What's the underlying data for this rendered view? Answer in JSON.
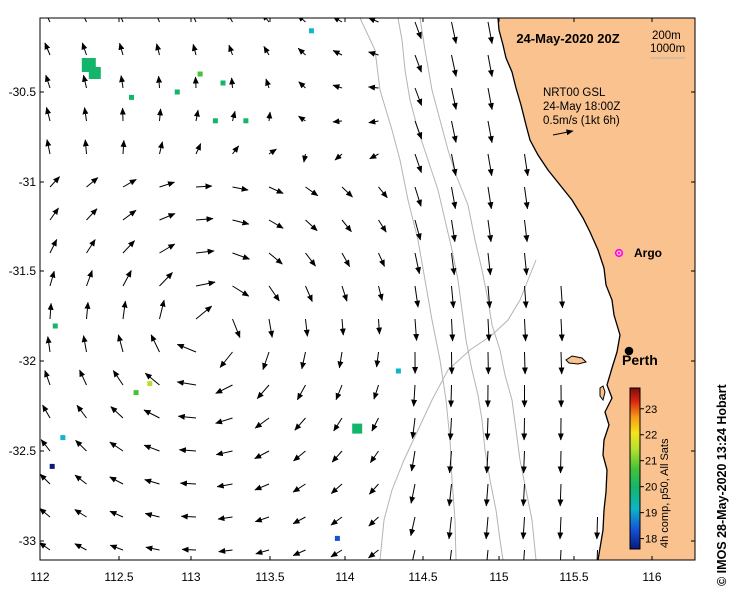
{
  "title": "24-May-2020 20Z",
  "depth_contours": [
    "200m",
    "1000m"
  ],
  "current_info": {
    "line1": "NRT00 GSL",
    "line2": "24-May 18:00Z",
    "line3": "0.5m/s (1kt 6h)"
  },
  "argo_label": "Argo",
  "city_label": "Perth",
  "credit": "© IMOS 28-May-2020 13:24 Hobart",
  "colorbar": {
    "label": "4h comp, p50, All Sats",
    "ticks": [
      "23",
      "22",
      "21",
      "20",
      "19",
      "18"
    ],
    "min": 17.6,
    "max": 23.8
  },
  "x_axis_labels": [
    "112",
    "112.5",
    "113",
    "113.5",
    "114",
    "114.5",
    "115",
    "115.5",
    "116"
  ],
  "y_axis_labels": [
    "-30.5",
    "-31",
    "-31.5",
    "-32",
    "-32.5",
    "-33"
  ],
  "colors": {
    "land": "#f9c28f",
    "coast": "#000000",
    "argo": "#ff00ff",
    "contour": "#b4b4b4"
  },
  "sst_patches": [
    {
      "lon": 112.32,
      "lat": -30.35,
      "sst": 20.4
    },
    {
      "lon": 112.6,
      "lat": -30.53,
      "sst": 20.3
    },
    {
      "lon": 112.9,
      "lat": -30.5,
      "sst": 20.5
    },
    {
      "lon": 113.2,
      "lat": -30.45,
      "sst": 20.8
    },
    {
      "lon": 113.05,
      "lat": -30.4,
      "sst": 20.9
    },
    {
      "lon": 113.15,
      "lat": -30.66,
      "sst": 20.7
    },
    {
      "lon": 113.35,
      "lat": -30.66,
      "sst": 20.5
    },
    {
      "lon": 112.1,
      "lat": -31.8,
      "sst": 20.8
    },
    {
      "lon": 112.63,
      "lat": -32.17,
      "sst": 21.5
    },
    {
      "lon": 112.72,
      "lat": -32.12,
      "sst": 21.7
    },
    {
      "lon": 114.08,
      "lat": -32.37,
      "sst": 20.8
    },
    {
      "lon": 114.35,
      "lat": -32.05,
      "sst": 20.2
    },
    {
      "lon": 112.15,
      "lat": -32.42,
      "sst": 19.6
    },
    {
      "lon": 112.08,
      "lat": -32.58,
      "sst": 18.5
    },
    {
      "lon": 113.95,
      "lat": -32.98,
      "sst": 19.4
    },
    {
      "lon": 113.78,
      "lat": -30.16,
      "sst": 20.1
    }
  ]
}
